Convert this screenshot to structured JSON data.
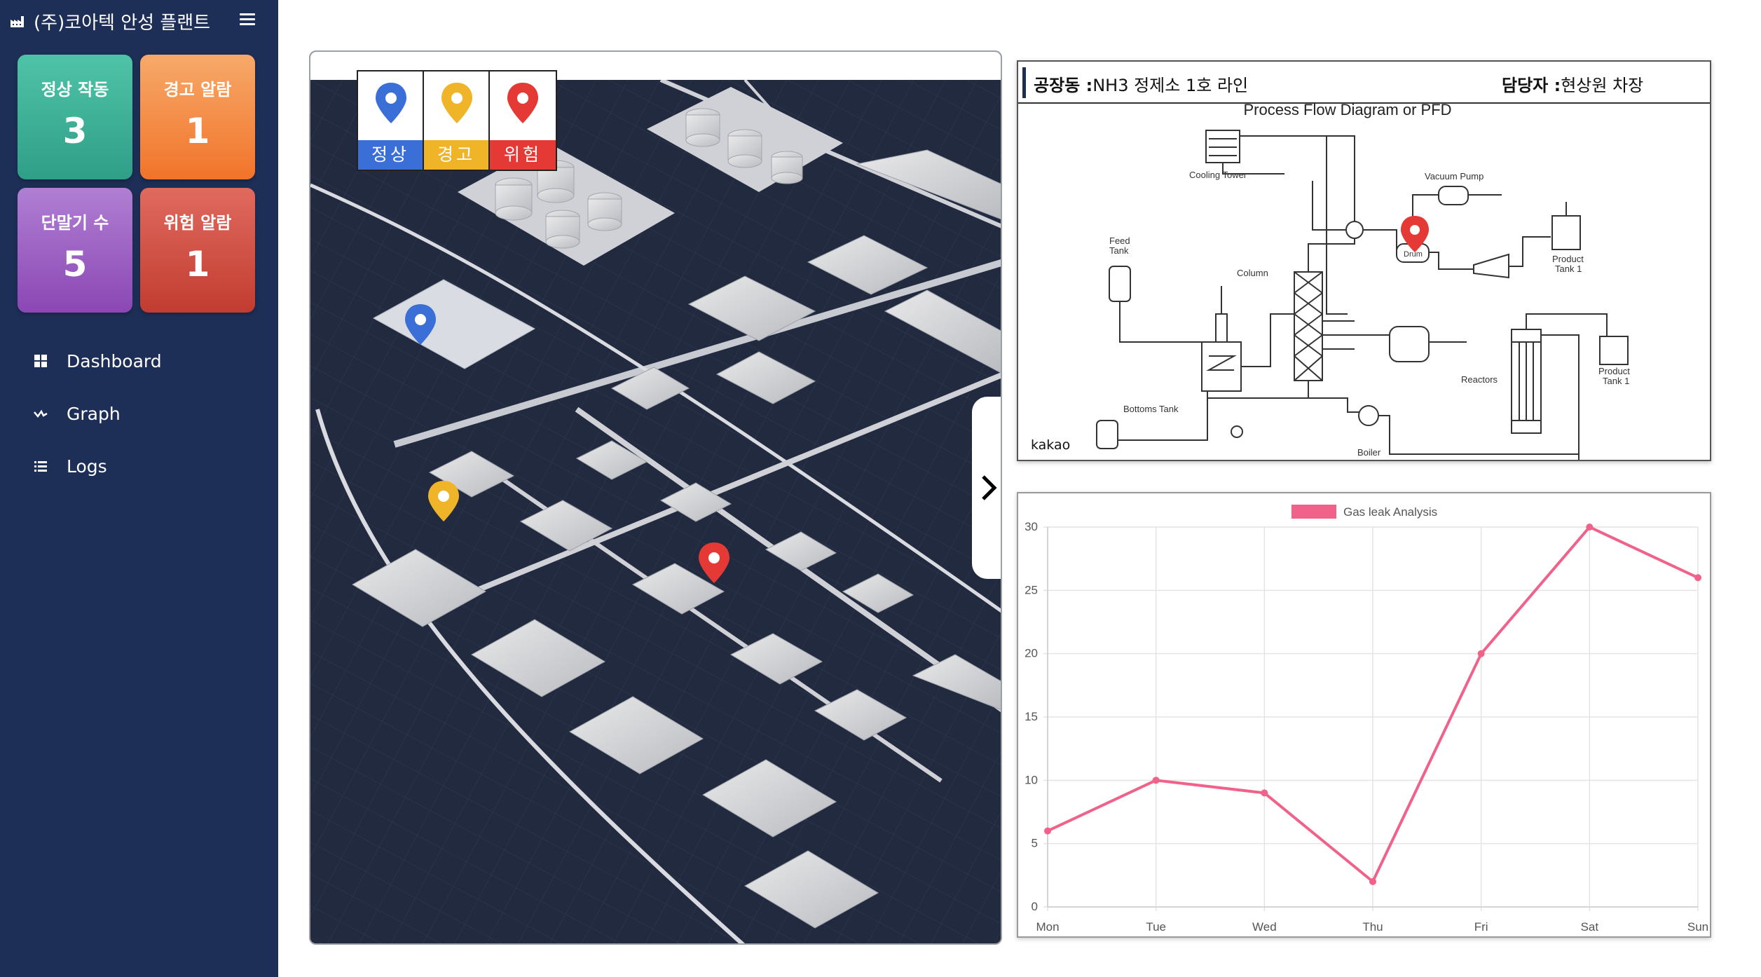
{
  "sidebar": {
    "brand": "(주)코아텍 안성 플랜트",
    "cards": [
      {
        "label": "정상 작동",
        "value": "3",
        "color": "#3bb39a"
      },
      {
        "label": "경고 알람",
        "value": "1",
        "color": "#f3853e"
      },
      {
        "label": "단말기 수",
        "value": "5",
        "color": "#9a5fc4"
      },
      {
        "label": "위험 알람",
        "value": "1",
        "color": "#cf4a3e"
      }
    ],
    "nav": [
      {
        "label": "Dashboard",
        "icon": "grid-icon"
      },
      {
        "label": "Graph",
        "icon": "line-graph-icon"
      },
      {
        "label": "Logs",
        "icon": "list-icon"
      }
    ]
  },
  "map": {
    "legend": [
      {
        "label": "정상",
        "color": "#3b6fd8"
      },
      {
        "label": "경고",
        "color": "#f0b429"
      },
      {
        "label": "위험",
        "color": "#e53935"
      }
    ]
  },
  "pfd": {
    "factory_key": "공장동 :",
    "factory_val": "NH3 정제소 1호 라인",
    "manager_key": "담당자 :",
    "manager_val": "현상원 차장",
    "diagram_title": "Process Flow Diagram or PFD",
    "labels": {
      "cooling_tower": "Cooling Tower",
      "vacuum_pump": "Vacuum Pump",
      "feed_tank_1": "Feed",
      "feed_tank_2": "Tank",
      "column": "Column",
      "drum": "Drum",
      "product_tank_1a": "Product",
      "product_tank_1b": "Tank 1",
      "product_tank_2a": "Product",
      "product_tank_2b": "Tank 1",
      "reactors": "Reactors",
      "bottoms_tank": "Bottoms Tank",
      "boiler": "Boiler"
    },
    "watermark": "kakao"
  },
  "chart_data": {
    "type": "line",
    "categories": [
      "Mon",
      "Tue",
      "Wed",
      "Thu",
      "Fri",
      "Sat",
      "Sun"
    ],
    "series": [
      {
        "name": "Gas leak Analysis",
        "values": [
          6,
          10,
          9,
          2,
          20,
          30,
          26
        ],
        "color": "#f0628a"
      }
    ],
    "yticks": [
      "0",
      "5",
      "10",
      "15",
      "20",
      "25",
      "30"
    ],
    "ylim": [
      0,
      30
    ],
    "legend_position": "top",
    "grid": true
  }
}
